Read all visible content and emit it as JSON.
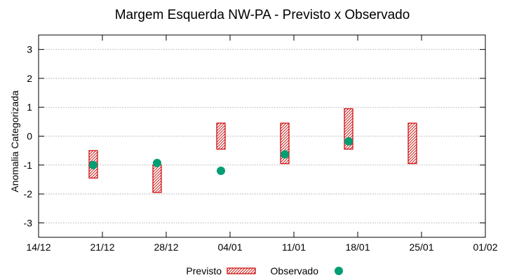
{
  "chart_data": {
    "type": "range-bar-with-points",
    "title": "Margem Esquerda NW-PA - Previsto x Observado",
    "ylabel": "Anomalia Categorizada",
    "xlabel": "",
    "x_ticks": [
      "14/12",
      "21/12",
      "28/12",
      "04/01",
      "11/01",
      "18/01",
      "25/01",
      "01/02"
    ],
    "y_ticks": [
      3,
      2,
      1,
      0,
      -1,
      -2,
      -3
    ],
    "ylim": [
      -3.5,
      3.5
    ],
    "grid": true,
    "legend_placement": "bottom-center",
    "series": [
      {
        "name": "Previsto",
        "style": "hatched-bar",
        "color": "#cc0000",
        "ranges": [
          {
            "x": "20/12",
            "low": -1.45,
            "high": -0.5
          },
          {
            "x": "27/12",
            "low": -1.95,
            "high": -1.0
          },
          {
            "x": "03/01",
            "low": -0.45,
            "high": 0.45
          },
          {
            "x": "10/01",
            "low": -0.95,
            "high": 0.45
          },
          {
            "x": "17/01",
            "low": -0.45,
            "high": 0.95
          },
          {
            "x": "24/01",
            "low": -0.95,
            "high": 0.45
          }
        ]
      },
      {
        "name": "Observado",
        "style": "point",
        "color": "#009e73",
        "points": [
          {
            "x": "20/12",
            "y": -1.0
          },
          {
            "x": "27/12",
            "y": -0.93
          },
          {
            "x": "03/01",
            "y": -1.2
          },
          {
            "x": "10/01",
            "y": -0.63
          },
          {
            "x": "17/01",
            "y": -0.18
          }
        ]
      }
    ]
  }
}
